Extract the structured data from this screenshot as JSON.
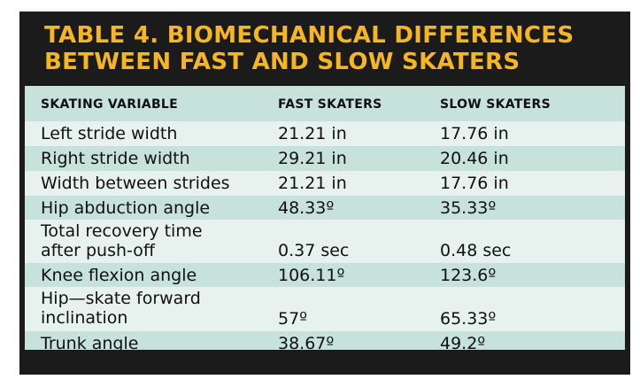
{
  "title": {
    "line1": "TABLE 4. BIOMECHANICAL DIFFERENCES",
    "line2": "BETWEEN FAST AND SLOW SKATERS"
  },
  "headers": [
    "SKATING VARIABLE",
    "FAST SKATERS",
    "SLOW SKATERS"
  ],
  "rows": [
    {
      "variable": [
        "Left stride width"
      ],
      "fast": "21.21 in",
      "slow": "17.76 in"
    },
    {
      "variable": [
        "Right stride width"
      ],
      "fast": "29.21 in",
      "slow": "20.46 in"
    },
    {
      "variable": [
        "Width between strides"
      ],
      "fast": "21.21 in",
      "slow": "17.76 in"
    },
    {
      "variable": [
        "Hip abduction angle"
      ],
      "fast": "48.33º",
      "slow": "35.33º"
    },
    {
      "variable": [
        "Total recovery time",
        "after push-off"
      ],
      "fast": "0.37 sec",
      "slow": "0.48 sec"
    },
    {
      "variable": [
        "Knee flexion angle"
      ],
      "fast": "106.11º",
      "slow": "123.6º"
    },
    {
      "variable": [
        "Hip—skate forward",
        "inclination"
      ],
      "fast": "57º",
      "slow": "65.33º"
    },
    {
      "variable": [
        "Trunk angle"
      ],
      "fast": "38.67º",
      "slow": "49.2º"
    }
  ],
  "colors": {
    "title": "#f5b622",
    "frame": "#1b1b1b",
    "band_dark": "#c7e2db",
    "band_light": "#e7f2ef"
  }
}
